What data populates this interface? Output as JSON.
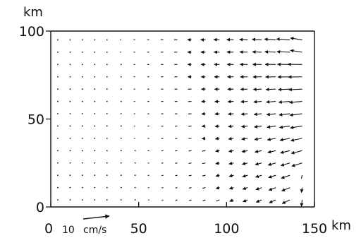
{
  "chart_data": {
    "type": "vector-field",
    "title": "",
    "xlabel": "km",
    "ylabel": "km",
    "xlim": [
      0,
      150
    ],
    "ylim": [
      0,
      100
    ],
    "xticks": [
      0,
      50,
      100,
      150
    ],
    "yticks": [
      0,
      50,
      100
    ],
    "grid": false,
    "reference_vector": {
      "value": 10,
      "number_label": "10",
      "unit_label": "cm/s"
    },
    "grid_x": [
      4,
      11,
      18,
      25,
      32,
      40,
      48,
      56,
      64,
      72,
      80,
      88,
      96,
      104,
      112,
      120,
      128,
      136,
      143
    ],
    "grid_y": [
      4,
      11,
      18,
      25,
      32,
      39,
      46,
      53,
      60,
      67,
      74,
      81,
      88,
      95
    ]
  }
}
